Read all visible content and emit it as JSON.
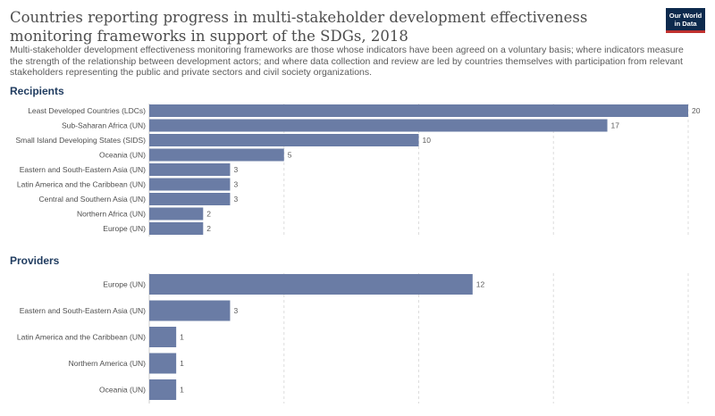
{
  "header": {
    "title": "Countries reporting progress in multi-stakeholder development effectiveness monitoring frameworks in support of the SDGs, 2018",
    "subtitle": "Multi-stakeholder development effectiveness monitoring frameworks are those whose indicators have been agreed on a voluntary basis; where indicators measure the strength of the relationship between development actors; and where data collection and review are led by countries themselves with participation from relevant stakeholders representing the public and private sectors and civil society organizations.",
    "logo_line1": "Our World",
    "logo_line2": "in Data"
  },
  "colors": {
    "bar": "#6a7ca5",
    "grid": "#dddddd"
  },
  "chart_data": [
    {
      "type": "bar",
      "orientation": "horizontal",
      "title": "Recipients",
      "categories": [
        "Least Developed Countries (LDCs)",
        "Sub-Saharan Africa (UN)",
        "Small Island Developing States (SIDS)",
        "Oceania (UN)",
        "Eastern and South-Eastern Asia (UN)",
        "Latin America and the Caribbean (UN)",
        "Central and Southern Asia (UN)",
        "Northern Africa (UN)",
        "Europe (UN)"
      ],
      "values": [
        20,
        17,
        10,
        5,
        3,
        3,
        3,
        2,
        2
      ],
      "xlim": [
        0,
        20
      ]
    },
    {
      "type": "bar",
      "orientation": "horizontal",
      "title": "Providers",
      "categories": [
        "Europe (UN)",
        "Eastern and South-Eastern Asia (UN)",
        "Latin America and the Caribbean (UN)",
        "Northern America (UN)",
        "Oceania (UN)"
      ],
      "values": [
        12,
        3,
        1,
        1,
        1
      ],
      "xlim": [
        0,
        20
      ]
    }
  ]
}
